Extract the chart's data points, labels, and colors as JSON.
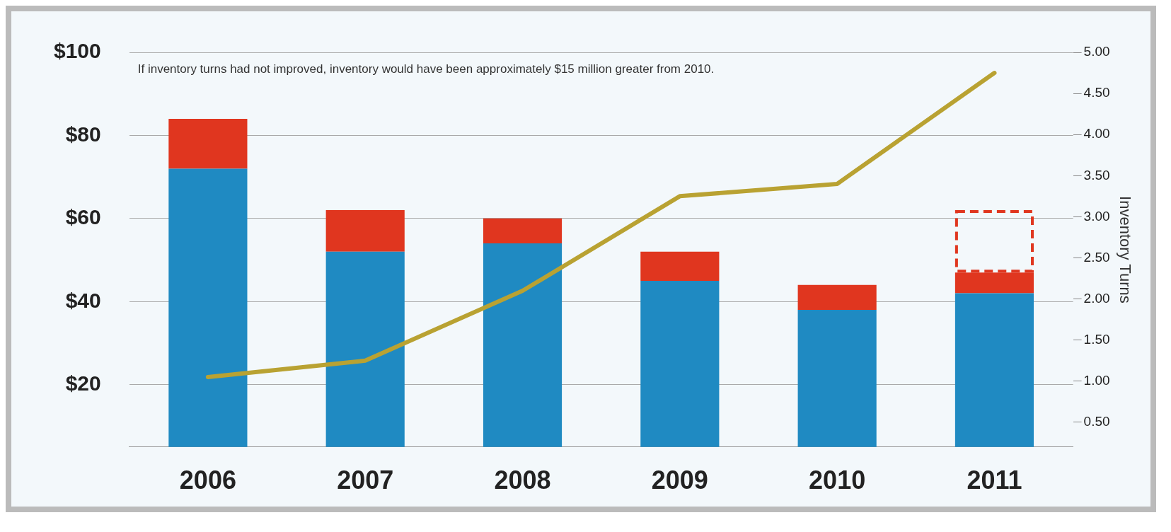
{
  "chart_data": {
    "type": "bar",
    "stacked": true,
    "categories": [
      "2006",
      "2007",
      "2008",
      "2009",
      "2010",
      "2011"
    ],
    "series": [
      {
        "color": "#1f8ac2",
        "values": [
          72,
          52,
          54,
          45,
          38,
          42
        ]
      },
      {
        "color": "#e0361f",
        "values": [
          12,
          10,
          6,
          7,
          6,
          5
        ]
      },
      {
        "color": "#e0361f",
        "line_style": "dashed",
        "values": [
          null,
          null,
          null,
          null,
          null,
          15
        ]
      },
      {
        "type": "line",
        "axis": "y2",
        "color": "#b9a232",
        "values": [
          1.05,
          1.25,
          2.1,
          3.25,
          3.4,
          4.75
        ]
      }
    ],
    "ylim": [
      5,
      100
    ],
    "yticks": [
      {
        "value": 20,
        "label": "$20"
      },
      {
        "value": 40,
        "label": "$40"
      },
      {
        "value": 60,
        "label": "$60"
      },
      {
        "value": 80,
        "label": "$80"
      },
      {
        "value": 100,
        "label": "$100"
      }
    ],
    "y2lim": [
      0.2,
      5
    ],
    "y2ticks": [
      {
        "value": 0.5,
        "label": "0.50"
      },
      {
        "value": 1,
        "label": "1.00"
      },
      {
        "value": 1.5,
        "label": "1.50"
      },
      {
        "value": 2,
        "label": "2.00"
      },
      {
        "value": 2.5,
        "label": "2.50"
      },
      {
        "value": 3,
        "label": "3.00"
      },
      {
        "value": 3.5,
        "label": "3.50"
      },
      {
        "value": 4,
        "label": "4.00"
      },
      {
        "value": 4.5,
        "label": "4.50"
      },
      {
        "value": 5,
        "label": "5.00"
      }
    ],
    "y2label": "Inventory Turns",
    "grid": "y",
    "legend": false,
    "annotations": [
      "If inventory turns had not improved, inventory would have been approximately $15 million greater from 2010."
    ]
  }
}
